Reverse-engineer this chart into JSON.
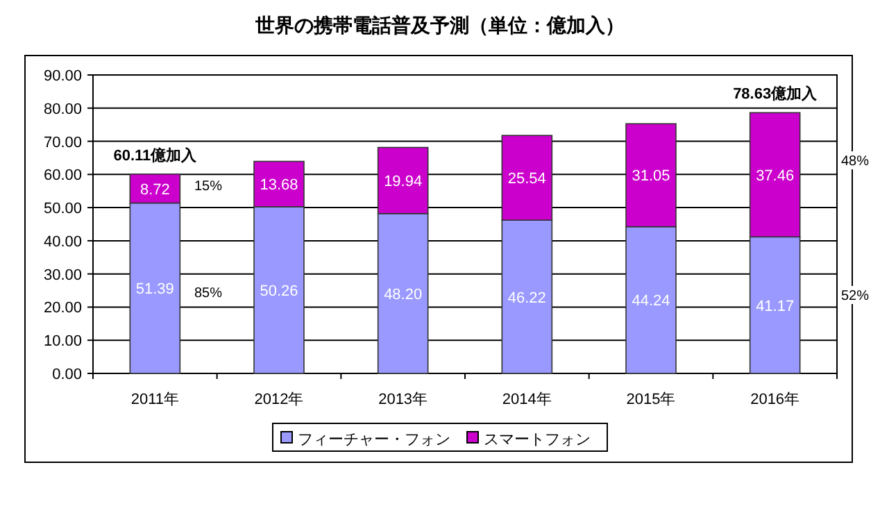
{
  "chart_data": {
    "type": "bar",
    "stacked": true,
    "title": "世界の携帯電話普及予測（単位：億加入）",
    "categories": [
      "2011年",
      "2012年",
      "2013年",
      "2014年",
      "2015年",
      "2016年"
    ],
    "series": [
      {
        "name": "フィーチャー・フォン",
        "color": "#9999ff",
        "values": [
          51.39,
          50.26,
          48.2,
          46.22,
          44.24,
          41.17
        ],
        "value_labels": [
          "51.39",
          "50.26",
          "48.20",
          "46.22",
          "44.24",
          "41.17"
        ]
      },
      {
        "name": "スマートフォン",
        "color": "#cc00cc",
        "values": [
          8.72,
          13.68,
          19.94,
          25.54,
          31.05,
          37.46
        ],
        "value_labels": [
          "8.72",
          "13.68",
          "19.94",
          "25.54",
          "31.05",
          "37.46"
        ]
      }
    ],
    "totals": [
      "60.11億加入",
      null,
      null,
      null,
      null,
      "78.63億加入"
    ],
    "annotations": [
      "15%",
      "85%",
      "48%",
      "52%"
    ],
    "ylim": [
      0,
      90
    ],
    "yticks": [
      {
        "value": 0,
        "label": "0.00"
      },
      {
        "value": 10,
        "label": "10.00"
      },
      {
        "value": 20,
        "label": "20.00"
      },
      {
        "value": 30,
        "label": "30.00"
      },
      {
        "value": 40,
        "label": "40.00"
      },
      {
        "value": 50,
        "label": "50.00"
      },
      {
        "value": 60,
        "label": "60.00"
      },
      {
        "value": 70,
        "label": "70.00"
      },
      {
        "value": 80,
        "label": "80.00"
      },
      {
        "value": 90,
        "label": "90.00"
      }
    ],
    "grid": "y",
    "legend": "bottom"
  }
}
